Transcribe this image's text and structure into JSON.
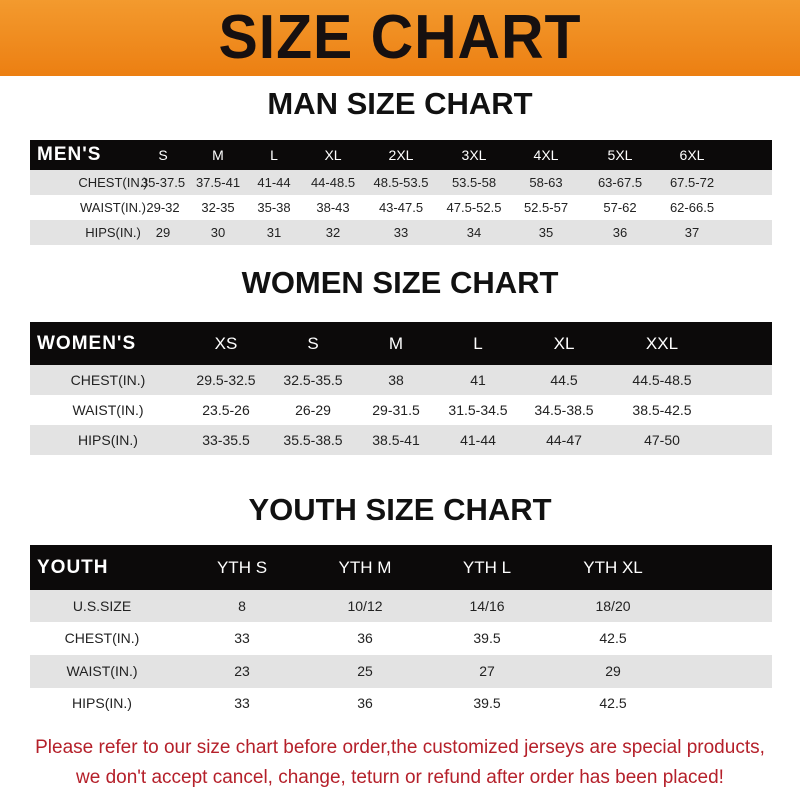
{
  "banner_title": "SIZE CHART",
  "men": {
    "title": "MAN SIZE CHART",
    "header": [
      "MEN'S",
      "S",
      "M",
      "L",
      "XL",
      "2XL",
      "3XL",
      "4XL",
      "5XL",
      "6XL"
    ],
    "rows": [
      [
        "CHEST(IN.)",
        "35-37.5",
        "37.5-41",
        "41-44",
        "44-48.5",
        "48.5-53.5",
        "53.5-58",
        "58-63",
        "63-67.5",
        "67.5-72"
      ],
      [
        "WAIST(IN.)",
        "29-32",
        "32-35",
        "35-38",
        "38-43",
        "43-47.5",
        "47.5-52.5",
        "52.5-57",
        "57-62",
        "62-66.5"
      ],
      [
        "HIPS(IN.)",
        "29",
        "30",
        "31",
        "32",
        "33",
        "34",
        "35",
        "36",
        "37"
      ]
    ]
  },
  "women": {
    "title": "WOMEN SIZE CHART",
    "header": [
      "WOMEN'S",
      "XS",
      "S",
      "M",
      "L",
      "XL",
      "XXL"
    ],
    "rows": [
      [
        "CHEST(IN.)",
        "29.5-32.5",
        "32.5-35.5",
        "38",
        "41",
        "44.5",
        "44.5-48.5"
      ],
      [
        "WAIST(IN.)",
        "23.5-26",
        "26-29",
        "29-31.5",
        "31.5-34.5",
        "34.5-38.5",
        "38.5-42.5"
      ],
      [
        "HIPS(IN.)",
        "33-35.5",
        "35.5-38.5",
        "38.5-41",
        "41-44",
        "44-47",
        "47-50"
      ]
    ]
  },
  "youth": {
    "title": "YOUTH SIZE CHART",
    "header": [
      "YOUTH",
      "YTH S",
      "YTH M",
      "YTH L",
      "YTH XL"
    ],
    "rows": [
      [
        "U.S.SIZE",
        "8",
        "10/12",
        "14/16",
        "18/20"
      ],
      [
        "CHEST(IN.)",
        "33",
        "36",
        "39.5",
        "42.5"
      ],
      [
        "WAIST(IN.)",
        "23",
        "25",
        "27",
        "29"
      ],
      [
        "HIPS(IN.)",
        "33",
        "36",
        "39.5",
        "42.5"
      ]
    ]
  },
  "footer": {
    "line1": "Please refer to our size chart before order,the customized jerseys are special products,",
    "line2": "we don't accept cancel, change, teturn or refund after order has been placed!"
  },
  "colors": {
    "banner": "#ec7f12",
    "header_row": "#0c0a0a",
    "stripe": "#e3e3e3",
    "footer_text": "#b5202a"
  }
}
